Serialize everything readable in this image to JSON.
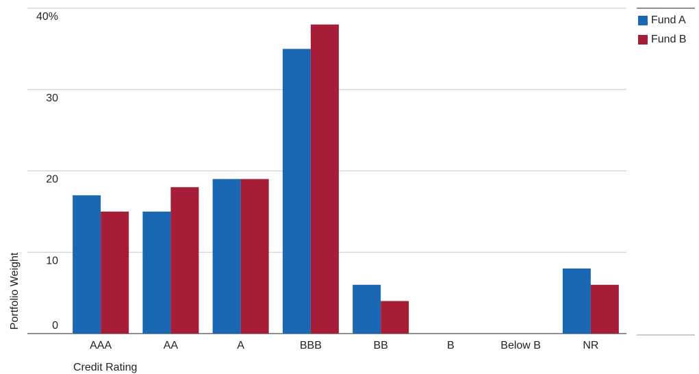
{
  "chart_data": {
    "type": "bar",
    "x_label": "Credit Rating",
    "y_label": "Portfolio Weight",
    "categories": [
      "AAA",
      "AA",
      "A",
      "BBB",
      "BB",
      "B",
      "Below B",
      "NR"
    ],
    "series": [
      {
        "name": "Fund A",
        "color": "#1a67b4",
        "values": [
          17,
          15,
          19,
          35,
          6,
          0,
          0,
          8
        ]
      },
      {
        "name": "Fund B",
        "color": "#a51d36",
        "values": [
          15,
          18,
          19,
          38,
          4,
          0,
          0,
          6
        ]
      }
    ],
    "ylim": [
      0,
      40
    ],
    "yticks": [
      0,
      10,
      20,
      30,
      {
        "value": 40,
        "label": "40%"
      }
    ],
    "grid": true,
    "legend": "top-right"
  }
}
